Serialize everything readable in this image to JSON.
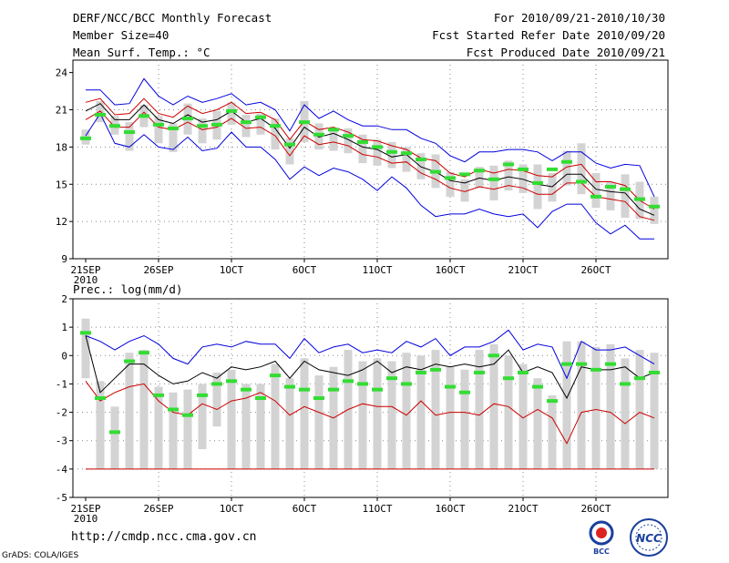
{
  "header": {
    "left": [
      "DERF/NCC/BCC Monthly Forecast",
      "Member Size=40",
      "Mean Surf. Temp.: °C"
    ],
    "right": [
      "For 2010/09/21-2010/10/30",
      "Fcst Started Refer Date 2010/09/20",
      "Fcst Produced Date 2010/09/21"
    ]
  },
  "footer": {
    "url": "http://cmdp.ncc.cma.gov.cn",
    "grads": "GrADS: COLA/IGES",
    "logo_left": "BCC",
    "logo_right": "NCC"
  },
  "colors": {
    "ensemble_range": "#0000dd",
    "spread": "#cc0000",
    "mean": "#000000",
    "observed": "#33dd33",
    "box": "#d3d3d3"
  },
  "chart_data": [
    {
      "type": "line",
      "title": "Mean Surf. Temp.: °C",
      "xlabel": "",
      "ylabel": "°C",
      "ylim": [
        9,
        25
      ],
      "yticks": [
        9,
        12,
        15,
        18,
        21,
        24
      ],
      "xtick_days": [
        0,
        5,
        10,
        15,
        20,
        25,
        30,
        35
      ],
      "xtick_labels": [
        "21SEP",
        "26SEP",
        "1OCT",
        "6OCT",
        "11OCT",
        "16OCT",
        "21OCT",
        "26OCT"
      ],
      "x_sublabel": "2010",
      "days": [
        0,
        1,
        2,
        3,
        4,
        5,
        6,
        7,
        8,
        9,
        10,
        11,
        12,
        13,
        14,
        15,
        16,
        17,
        18,
        19,
        20,
        21,
        22,
        23,
        24,
        25,
        26,
        27,
        28,
        29,
        30,
        31,
        32,
        33,
        34,
        35,
        36,
        37,
        38,
        39
      ],
      "series": [
        {
          "name": "ensemble max",
          "color": "blue",
          "values": [
            22.6,
            22.6,
            21.4,
            21.5,
            23.5,
            22.1,
            21.4,
            22.1,
            21.6,
            21.9,
            22.3,
            21.4,
            21.6,
            21.0,
            19.3,
            21.4,
            20.3,
            20.9,
            20.2,
            19.7,
            19.7,
            19.4,
            19.4,
            18.7,
            18.3,
            17.3,
            16.8,
            17.6,
            17.6,
            17.8,
            17.8,
            17.6,
            16.9,
            17.6,
            17.6,
            16.7,
            16.3,
            16.6,
            16.5,
            14.0
          ]
        },
        {
          "name": "mean + spread",
          "color": "red",
          "values": [
            21.6,
            21.9,
            20.6,
            20.7,
            21.9,
            20.7,
            20.4,
            21.3,
            20.7,
            21.0,
            21.6,
            20.7,
            20.8,
            20.2,
            18.6,
            20.1,
            19.4,
            19.6,
            19.2,
            18.6,
            18.5,
            18.1,
            17.8,
            17.1,
            16.9,
            15.9,
            15.6,
            16.2,
            15.9,
            16.2,
            16.1,
            15.7,
            15.6,
            16.4,
            16.6,
            15.2,
            15.2,
            14.9,
            13.7,
            13.0
          ]
        },
        {
          "name": "ensemble mean",
          "color": "black",
          "values": [
            20.9,
            21.5,
            20.2,
            20.2,
            21.4,
            20.2,
            19.9,
            20.6,
            20.0,
            20.2,
            20.9,
            20.0,
            20.3,
            19.5,
            17.9,
            19.6,
            18.8,
            19.1,
            18.6,
            18.0,
            17.8,
            17.2,
            17.4,
            16.4,
            16.0,
            15.3,
            15.1,
            15.5,
            15.3,
            15.6,
            15.4,
            15.0,
            14.8,
            15.8,
            15.8,
            14.6,
            14.4,
            14.3,
            13.0,
            12.5
          ]
        },
        {
          "name": "mean - spread",
          "color": "red",
          "values": [
            20.2,
            20.9,
            19.6,
            19.6,
            20.8,
            19.6,
            19.4,
            20.0,
            19.4,
            19.6,
            20.3,
            19.5,
            19.6,
            18.9,
            17.3,
            18.9,
            18.2,
            18.4,
            18.1,
            17.4,
            17.2,
            16.7,
            16.8,
            15.9,
            15.4,
            14.7,
            14.4,
            14.8,
            14.6,
            14.9,
            14.7,
            14.2,
            14.2,
            15.1,
            15.1,
            14.0,
            13.8,
            13.6,
            12.4,
            12.1
          ]
        },
        {
          "name": "ensemble min",
          "color": "blue",
          "values": [
            18.9,
            20.7,
            18.3,
            18.0,
            19.0,
            18.0,
            17.8,
            18.8,
            17.7,
            17.9,
            19.2,
            18.0,
            18.0,
            17.0,
            15.4,
            16.4,
            15.7,
            16.3,
            16.0,
            15.4,
            14.5,
            15.6,
            14.7,
            13.3,
            12.4,
            12.6,
            12.6,
            13.0,
            12.6,
            12.4,
            12.6,
            11.5,
            12.8,
            13.4,
            13.4,
            11.9,
            11.0,
            11.7,
            10.6,
            10.6
          ]
        },
        {
          "name": "observed",
          "color": "green",
          "values": [
            18.7,
            20.6,
            19.7,
            19.2,
            20.5,
            19.8,
            19.5,
            20.3,
            19.7,
            19.8,
            20.9,
            20.0,
            20.4,
            19.7,
            18.2,
            20.0,
            19.0,
            19.4,
            18.9,
            18.4,
            18.0,
            17.6,
            17.5,
            17.0,
            16.0,
            15.5,
            15.8,
            16.1,
            15.4,
            16.6,
            16.2,
            15.1,
            16.2,
            16.8,
            15.2,
            14.0,
            14.8,
            14.6,
            13.8,
            13.2
          ]
        }
      ],
      "box_top": [
        19.4,
        21.7,
        20.5,
        20.0,
        21.4,
        20.5,
        19.9,
        21.5,
        20.3,
        20.9,
        21.6,
        20.6,
        20.7,
        20.3,
        18.7,
        21.7,
        19.9,
        19.5,
        19.5,
        19.0,
        18.6,
        18.4,
        18.0,
        17.5,
        17.4,
        16.0,
        15.4,
        16.4,
        16.5,
        16.9,
        16.6,
        16.6,
        15.9,
        17.7,
        18.3,
        15.9,
        15.2,
        15.8,
        15.2,
        14.0
      ],
      "box_bottom": [
        18.2,
        20.0,
        19.0,
        17.7,
        19.6,
        18.3,
        17.6,
        19.0,
        18.3,
        18.6,
        19.8,
        18.8,
        19.0,
        17.8,
        16.6,
        18.4,
        17.8,
        17.7,
        17.5,
        16.7,
        16.5,
        16.3,
        16.0,
        15.4,
        14.7,
        14.0,
        13.6,
        14.7,
        13.7,
        14.5,
        14.3,
        13.0,
        13.6,
        14.9,
        14.2,
        13.1,
        12.9,
        12.3,
        12.2,
        11.8
      ]
    },
    {
      "type": "line",
      "title": "Prec.: log(mm/d)",
      "xlabel": "",
      "ylabel": "log(mm/d)",
      "ylim": [
        -5,
        2
      ],
      "yticks": [
        -5,
        -4,
        -3,
        -2,
        -1,
        0,
        1,
        2
      ],
      "xtick_days": [
        0,
        5,
        10,
        15,
        20,
        25,
        30,
        35
      ],
      "xtick_labels": [
        "21SEP",
        "26SEP",
        "1OCT",
        "6OCT",
        "11OCT",
        "16OCT",
        "21OCT",
        "26OCT"
      ],
      "x_sublabel": "2010",
      "days": [
        0,
        1,
        2,
        3,
        4,
        5,
        6,
        7,
        8,
        9,
        10,
        11,
        12,
        13,
        14,
        15,
        16,
        17,
        18,
        19,
        20,
        21,
        22,
        23,
        24,
        25,
        26,
        27,
        28,
        29,
        30,
        31,
        32,
        33,
        34,
        35,
        36,
        37,
        38,
        39
      ],
      "series": [
        {
          "name": "ensemble max",
          "color": "blue",
          "values": [
            0.7,
            0.5,
            0.2,
            0.5,
            0.7,
            0.4,
            -0.1,
            -0.3,
            0.3,
            0.4,
            0.3,
            0.5,
            0.4,
            0.4,
            -0.1,
            0.6,
            0.1,
            0.3,
            0.4,
            0.1,
            0.2,
            0.1,
            0.5,
            0.3,
            0.6,
            0.0,
            0.3,
            0.3,
            0.5,
            0.9,
            0.2,
            0.4,
            0.3,
            -0.8,
            0.5,
            0.2,
            0.2,
            0.3,
            0.0,
            -0.3
          ]
        },
        {
          "name": "ensemble mean",
          "color": "black",
          "values": [
            0.7,
            -1.3,
            -0.8,
            -0.3,
            -0.3,
            -0.7,
            -1.0,
            -0.9,
            -0.6,
            -0.8,
            -0.4,
            -0.5,
            -0.4,
            -0.2,
            -0.8,
            -0.2,
            -0.5,
            -0.6,
            -0.7,
            -0.5,
            -0.2,
            -0.6,
            -0.4,
            -0.5,
            -0.3,
            -0.4,
            -0.3,
            -0.4,
            -0.3,
            0.2,
            -0.6,
            -0.4,
            -0.6,
            -1.5,
            -0.4,
            -0.5,
            -0.5,
            -0.4,
            -0.8,
            -0.6
          ]
        },
        {
          "name": "lower percentile",
          "color": "red",
          "values": [
            -0.9,
            -1.6,
            -1.3,
            -1.1,
            -1.0,
            -1.6,
            -2.0,
            -2.1,
            -1.7,
            -1.9,
            -1.6,
            -1.5,
            -1.3,
            -1.6,
            -2.1,
            -1.8,
            -2.0,
            -2.2,
            -1.9,
            -1.7,
            -1.8,
            -1.8,
            -2.1,
            -1.6,
            -2.1,
            -2.0,
            -2.0,
            -2.1,
            -1.7,
            -1.8,
            -2.2,
            -1.9,
            -2.2,
            -3.1,
            -2.0,
            -1.9,
            -2.0,
            -2.4,
            -2.0,
            -2.2
          ]
        },
        {
          "name": "observed",
          "color": "green",
          "values": [
            0.8,
            -1.5,
            -2.7,
            -0.2,
            0.1,
            -1.4,
            -1.9,
            -2.1,
            -1.4,
            -1.0,
            -0.9,
            -1.2,
            -1.5,
            -0.7,
            -1.1,
            -1.2,
            -1.5,
            -1.2,
            -0.9,
            -1.0,
            -1.2,
            -0.8,
            -1.0,
            -0.6,
            -0.5,
            -1.1,
            -1.3,
            -0.6,
            0.0,
            -0.8,
            -0.6,
            -1.1,
            -1.6,
            -0.3,
            -0.3,
            -0.5,
            -0.3,
            -1.0,
            -0.8,
            -0.6
          ]
        },
        {
          "name": "ensemble floor",
          "color": "red",
          "values": [
            -4,
            -4,
            -4,
            -4,
            -4,
            -4,
            -4,
            -4,
            -4,
            -4,
            -4,
            -4,
            -4,
            -4,
            -4,
            -4,
            -4,
            -4,
            -4,
            -4,
            -4,
            -4,
            -4,
            -4,
            -4,
            -4,
            -4,
            -4,
            -4,
            -4,
            -4,
            -4,
            -4,
            -4,
            -4,
            -4,
            -4,
            -4,
            -4,
            -4
          ]
        }
      ],
      "box_top": [
        1.3,
        -0.9,
        -1.8,
        0.1,
        0.2,
        -1.1,
        -1.3,
        -1.2,
        -1.0,
        -0.6,
        -0.5,
        -1.0,
        -1.0,
        -0.3,
        -0.8,
        -0.1,
        -0.7,
        -0.4,
        0.2,
        -0.2,
        -0.1,
        -0.2,
        0.1,
        0.0,
        0.2,
        -0.4,
        -0.5,
        0.2,
        0.4,
        0.0,
        -0.3,
        -0.8,
        -1.4,
        0.5,
        0.5,
        0.3,
        0.4,
        -0.1,
        0.2,
        0.1
      ],
      "box_bottom": [
        -0.8,
        -4,
        -4,
        -4,
        -4,
        -4,
        -4,
        -4,
        -3.3,
        -2.5,
        -4,
        -4,
        -4,
        -4,
        -4,
        -4,
        -4,
        -4,
        -4,
        -4,
        -4,
        -4,
        -4,
        -4,
        -4,
        -4,
        -4,
        -4,
        -4,
        -4,
        -4,
        -4,
        -4,
        -4,
        -4,
        -4,
        -4,
        -4,
        -4,
        -4
      ]
    }
  ]
}
